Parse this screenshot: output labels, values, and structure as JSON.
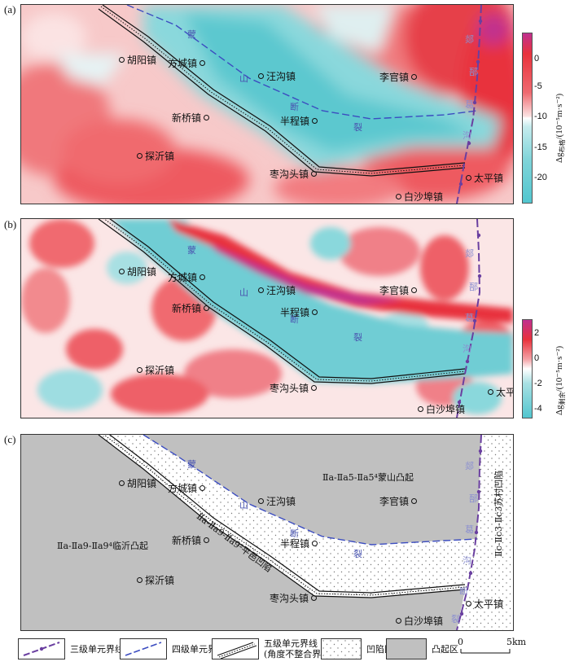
{
  "panels": [
    {
      "label": "(a)",
      "colorbar": {
        "ticks": [
          "0",
          "-5",
          "-10",
          "-15",
          "-20"
        ],
        "title_main": "Δg",
        "title_sub": "布格",
        "title_unit": "/(10⁻⁵m·s⁻²)"
      }
    },
    {
      "label": "(b)",
      "colorbar": {
        "ticks": [
          "2",
          "0",
          "-2",
          "-4"
        ],
        "title_main": "Δg",
        "title_sub": "剩余",
        "title_unit": "/(10⁻⁵m·s⁻²)"
      }
    },
    {
      "label": "(c)"
    }
  ],
  "towns": {
    "huyang": "胡阳镇",
    "fangcheng": "方城镇",
    "wanggou": "汪沟镇",
    "liguan": "李官镇",
    "xinqiao": "新桥镇",
    "banchen": "半程镇",
    "tanyi": "探沂镇",
    "zaogoutou": "枣沟头镇",
    "taiping": "太平镇",
    "baishabu": "白沙埠镇"
  },
  "fault_labels": {
    "mengshan": [
      "蒙",
      "山",
      "断",
      "裂"
    ],
    "yishu": [
      "郯",
      "郚",
      "葛",
      "沟",
      "断",
      "裂"
    ]
  },
  "unit_labels": {
    "mengshan_uplift": "Ⅱa-Ⅱa5-Ⅱa5⁴蒙山凸起",
    "linyi_uplift": "Ⅱa-Ⅱa9-Ⅱa9⁴临沂凸起",
    "pingyi_depression": "Ⅱa-Ⅱa9-Ⅱa9²平邑凹陷",
    "sucun_depression": "Ⅱc-Ⅱc3-Ⅱc3苏村凹陷"
  },
  "legend": {
    "third_level": "三级单元界线",
    "fourth_level": "四级单元界线",
    "fifth_level_1": "五级单元界线",
    "fifth_level_2": "(角度不整合界线)",
    "depression": "凹陷区",
    "uplift": "凸起区",
    "scale_start": "0",
    "scale_end": "5km"
  },
  "colors": {
    "red": "#e8323c",
    "cyan": "#52c6cf",
    "magenta": "#c0308f",
    "uplift_gray": "#c0c0c0",
    "fault_blue": "#3b4cc0",
    "fault_purple": "#6a3fa0"
  }
}
